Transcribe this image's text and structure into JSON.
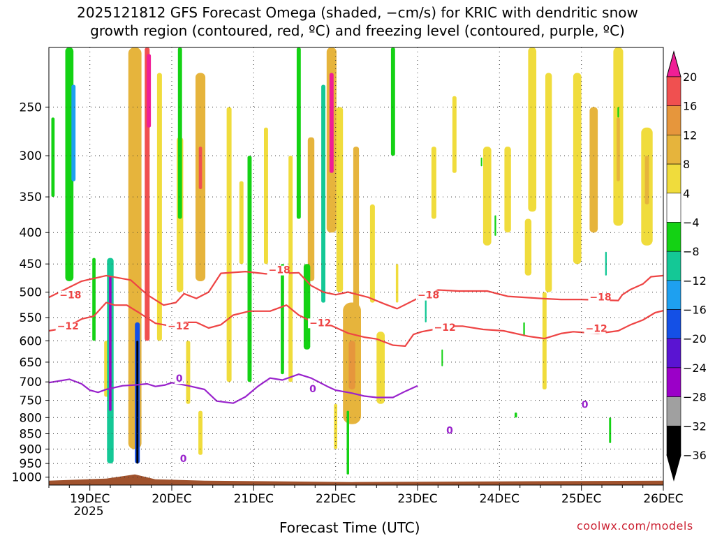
{
  "chart_data": {
    "type": "heatmap",
    "title": "2025121812 GFS Forecast Omega (shaded, −cm/s) for KRIC with dendritic snow",
    "subtitle": "growth region (contoured, red, ºC) and freezing level (contoured, purple, ºC)",
    "xlabel": "Forecast Time (UTC)",
    "watermark": "coolwx.com/models",
    "x_range_days": [
      18.5,
      26.0
    ],
    "x_ticks": [
      {
        "day": 19,
        "label": "19DEC"
      },
      {
        "day": 20,
        "label": "20DEC"
      },
      {
        "day": 21,
        "label": "21DEC"
      },
      {
        "day": 22,
        "label": "22DEC"
      },
      {
        "day": 23,
        "label": "23DEC"
      },
      {
        "day": 24,
        "label": "24DEC"
      },
      {
        "day": 25,
        "label": "25DEC"
      },
      {
        "day": 26,
        "label": "26DEC"
      }
    ],
    "x_year_label": "2025",
    "y_scale": "log",
    "y_range_hpa": [
      1030,
      200
    ],
    "y_ticks": [
      250,
      300,
      350,
      400,
      450,
      500,
      550,
      600,
      650,
      700,
      750,
      800,
      850,
      900,
      950,
      1000
    ],
    "grid": true,
    "colorbar": {
      "levels": [
        -36,
        -32,
        -28,
        -24,
        -20,
        -16,
        -12,
        -8,
        -4,
        4,
        8,
        12,
        16,
        20
      ],
      "labels": [
        "20",
        "16",
        "12",
        "8",
        "4",
        "−4",
        "−8",
        "−12",
        "−16",
        "−20",
        "−24",
        "−28",
        "−32",
        "−36"
      ],
      "colors": {
        "c_lt_-32": "#000000",
        "c_-32_-28": "#a0a0a0",
        "c_-28_-24": "#9b00c8",
        "c_-24_-20": "#5a14d2",
        "c_-20_-16": "#1450e6",
        "c_-16_-12": "#1ea0f0",
        "c_-12_-8": "#14c896",
        "c_-8_-4": "#14d214",
        "c_-4_4": "#ffffff",
        "c_4_8": "#f0dc3c",
        "c_8_12": "#e6b43c",
        "c_12_16": "#e6963c",
        "c_16_20": "#f05050",
        "c_gt_20": "#f01e96"
      }
    },
    "contours": {
      "minus18": {
        "color": "#ee4444",
        "label": "−18",
        "points": [
          [
            18.5,
            510
          ],
          [
            18.9,
            480
          ],
          [
            19.2,
            470
          ],
          [
            19.5,
            478
          ],
          [
            19.7,
            505
          ],
          [
            19.9,
            525
          ],
          [
            20.05,
            520
          ],
          [
            20.15,
            503
          ],
          [
            20.3,
            512
          ],
          [
            20.45,
            500
          ],
          [
            20.6,
            466
          ],
          [
            20.9,
            463
          ],
          [
            21.15,
            467
          ],
          [
            21.35,
            466
          ],
          [
            21.55,
            465
          ],
          [
            21.7,
            488
          ],
          [
            21.85,
            500
          ],
          [
            22.0,
            505
          ],
          [
            22.15,
            500
          ],
          [
            22.4,
            510
          ],
          [
            22.6,
            523
          ],
          [
            22.75,
            532
          ],
          [
            22.9,
            520
          ],
          [
            23.0,
            512
          ],
          [
            23.15,
            504
          ],
          [
            23.25,
            496
          ],
          [
            23.5,
            498
          ],
          [
            23.85,
            498
          ],
          [
            24.1,
            508
          ],
          [
            24.5,
            512
          ],
          [
            24.75,
            514
          ],
          [
            25.0,
            514
          ],
          [
            25.45,
            516
          ],
          [
            25.5,
            505
          ],
          [
            25.6,
            495
          ],
          [
            25.75,
            485
          ],
          [
            25.85,
            472
          ],
          [
            26.0,
            470
          ]
        ]
      },
      "minus12": {
        "color": "#ee4444",
        "label": "−12",
        "points": [
          [
            18.5,
            578
          ],
          [
            18.7,
            572
          ],
          [
            18.9,
            553
          ],
          [
            19.05,
            547
          ],
          [
            19.2,
            520
          ],
          [
            19.3,
            525
          ],
          [
            19.45,
            525
          ],
          [
            19.6,
            540
          ],
          [
            19.8,
            562
          ],
          [
            20.0,
            568
          ],
          [
            20.15,
            560
          ],
          [
            20.3,
            560
          ],
          [
            20.45,
            572
          ],
          [
            20.6,
            565
          ],
          [
            20.75,
            545
          ],
          [
            20.95,
            537
          ],
          [
            21.2,
            537
          ],
          [
            21.4,
            525
          ],
          [
            21.55,
            545
          ],
          [
            21.75,
            562
          ],
          [
            21.95,
            567
          ],
          [
            22.15,
            583
          ],
          [
            22.35,
            592
          ],
          [
            22.5,
            596
          ],
          [
            22.7,
            610
          ],
          [
            22.85,
            612
          ],
          [
            22.95,
            586
          ],
          [
            23.05,
            580
          ],
          [
            23.2,
            575
          ],
          [
            23.35,
            568
          ],
          [
            23.55,
            568
          ],
          [
            23.8,
            575
          ],
          [
            24.05,
            578
          ],
          [
            24.35,
            590
          ],
          [
            24.55,
            595
          ],
          [
            24.75,
            584
          ],
          [
            24.9,
            580
          ],
          [
            25.2,
            584
          ],
          [
            25.45,
            578
          ],
          [
            25.6,
            565
          ],
          [
            25.75,
            555
          ],
          [
            25.9,
            540
          ],
          [
            26.0,
            536
          ]
        ]
      },
      "zero": {
        "color": "#9922cc",
        "label": "0",
        "points": [
          [
            18.5,
            702
          ],
          [
            18.75,
            693
          ],
          [
            18.9,
            705
          ],
          [
            19.0,
            722
          ],
          [
            19.1,
            728
          ],
          [
            19.2,
            720
          ],
          [
            19.4,
            710
          ],
          [
            19.55,
            708
          ],
          [
            19.7,
            705
          ],
          [
            19.8,
            712
          ],
          [
            19.92,
            708
          ],
          [
            20.0,
            702
          ],
          [
            20.2,
            710
          ],
          [
            20.4,
            720
          ],
          [
            20.55,
            752
          ],
          [
            20.75,
            758
          ],
          [
            20.9,
            740
          ],
          [
            21.05,
            712
          ],
          [
            21.2,
            690
          ],
          [
            21.35,
            695
          ],
          [
            21.55,
            680
          ],
          [
            21.7,
            690
          ],
          [
            21.9,
            712
          ],
          [
            22.0,
            722
          ],
          [
            22.2,
            730
          ],
          [
            22.35,
            738
          ],
          [
            22.5,
            742
          ],
          [
            22.7,
            742
          ],
          [
            22.85,
            725
          ],
          [
            23.0,
            710
          ]
        ]
      }
    },
    "contour_labels": [
      {
        "text": "−18",
        "day": 18.63,
        "hpa": 512,
        "color": "#ee4444"
      },
      {
        "text": "−12",
        "day": 18.6,
        "hpa": 575,
        "color": "#ee4444"
      },
      {
        "text": "−12",
        "day": 19.95,
        "hpa": 575,
        "color": "#ee4444"
      },
      {
        "text": "−18",
        "day": 21.18,
        "hpa": 466,
        "color": "#ee4444"
      },
      {
        "text": "−12",
        "day": 21.68,
        "hpa": 568,
        "color": "#ee4444"
      },
      {
        "text": "−18",
        "day": 23.0,
        "hpa": 512,
        "color": "#ee4444"
      },
      {
        "text": "−12",
        "day": 23.2,
        "hpa": 578,
        "color": "#ee4444"
      },
      {
        "text": "−18",
        "day": 25.1,
        "hpa": 516,
        "color": "#ee4444"
      },
      {
        "text": "−12",
        "day": 25.05,
        "hpa": 580,
        "color": "#ee4444"
      },
      {
        "text": "0",
        "day": 20.05,
        "hpa": 700,
        "color": "#9922cc"
      },
      {
        "text": "0",
        "day": 20.1,
        "hpa": 945,
        "color": "#9922cc"
      },
      {
        "text": "0",
        "day": 21.68,
        "hpa": 728,
        "color": "#9922cc"
      },
      {
        "text": "0",
        "day": 23.35,
        "hpa": 850,
        "color": "#9922cc"
      },
      {
        "text": "0",
        "day": 25.0,
        "hpa": 772,
        "color": "#9922cc"
      }
    ],
    "omega_blobs": [
      {
        "day": 19.55,
        "p_top": 200,
        "p_bot": 900,
        "w": 0.16,
        "v": 10
      },
      {
        "day": 19.7,
        "p_top": 200,
        "p_bot": 600,
        "w": 0.06,
        "v": 18
      },
      {
        "day": 19.72,
        "p_top": 205,
        "p_bot": 270,
        "w": 0.05,
        "v": 22
      },
      {
        "day": 19.85,
        "p_top": 220,
        "p_bot": 600,
        "w": 0.06,
        "v": 6
      },
      {
        "day": 20.35,
        "p_top": 220,
        "p_bot": 480,
        "w": 0.12,
        "v": 9
      },
      {
        "day": 20.35,
        "p_top": 290,
        "p_bot": 340,
        "w": 0.04,
        "v": 18
      },
      {
        "day": 20.1,
        "p_top": 280,
        "p_bot": 500,
        "w": 0.08,
        "v": 5
      },
      {
        "day": 20.7,
        "p_top": 250,
        "p_bot": 700,
        "w": 0.06,
        "v": 5
      },
      {
        "day": 20.85,
        "p_top": 330,
        "p_bot": 450,
        "w": 0.05,
        "v": 5
      },
      {
        "day": 21.15,
        "p_top": 270,
        "p_bot": 450,
        "w": 0.05,
        "v": 5
      },
      {
        "day": 21.45,
        "p_top": 300,
        "p_bot": 700,
        "w": 0.05,
        "v": 5
      },
      {
        "day": 21.7,
        "p_top": 280,
        "p_bot": 480,
        "w": 0.08,
        "v": 9
      },
      {
        "day": 21.95,
        "p_top": 200,
        "p_bot": 400,
        "w": 0.12,
        "v": 10
      },
      {
        "day": 21.95,
        "p_top": 220,
        "p_bot": 320,
        "w": 0.05,
        "v": 21
      },
      {
        "day": 22.05,
        "p_top": 250,
        "p_bot": 500,
        "w": 0.08,
        "v": 8
      },
      {
        "day": 22.25,
        "p_top": 290,
        "p_bot": 550,
        "w": 0.07,
        "v": 9
      },
      {
        "day": 22.45,
        "p_top": 360,
        "p_bot": 520,
        "w": 0.06,
        "v": 5
      },
      {
        "day": 22.2,
        "p_top": 520,
        "p_bot": 820,
        "w": 0.22,
        "v": 9
      },
      {
        "day": 22.2,
        "p_top": 600,
        "p_bot": 720,
        "w": 0.08,
        "v": 14
      },
      {
        "day": 22.55,
        "p_top": 580,
        "p_bot": 760,
        "w": 0.1,
        "v": 5
      },
      {
        "day": 22.0,
        "p_top": 760,
        "p_bot": 900,
        "w": 0.04,
        "v": 5
      },
      {
        "day": 22.75,
        "p_top": 450,
        "p_bot": 520,
        "w": 0.03,
        "v": 5
      },
      {
        "day": 23.2,
        "p_top": 290,
        "p_bot": 380,
        "w": 0.06,
        "v": 5
      },
      {
        "day": 23.45,
        "p_top": 240,
        "p_bot": 320,
        "w": 0.05,
        "v": 5
      },
      {
        "day": 23.85,
        "p_top": 290,
        "p_bot": 420,
        "w": 0.1,
        "v": 5
      },
      {
        "day": 24.1,
        "p_top": 290,
        "p_bot": 400,
        "w": 0.08,
        "v": 5
      },
      {
        "day": 24.4,
        "p_top": 200,
        "p_bot": 370,
        "w": 0.1,
        "v": 5
      },
      {
        "day": 24.35,
        "p_top": 380,
        "p_bot": 470,
        "w": 0.08,
        "v": 5
      },
      {
        "day": 24.6,
        "p_top": 220,
        "p_bot": 500,
        "w": 0.08,
        "v": 5
      },
      {
        "day": 24.55,
        "p_top": 500,
        "p_bot": 720,
        "w": 0.05,
        "v": 5
      },
      {
        "day": 24.95,
        "p_top": 220,
        "p_bot": 450,
        "w": 0.1,
        "v": 5
      },
      {
        "day": 25.15,
        "p_top": 250,
        "p_bot": 400,
        "w": 0.1,
        "v": 9
      },
      {
        "day": 25.45,
        "p_top": 200,
        "p_bot": 390,
        "w": 0.12,
        "v": 6
      },
      {
        "day": 25.45,
        "p_top": 260,
        "p_bot": 330,
        "w": 0.04,
        "v": 10
      },
      {
        "day": 25.8,
        "p_top": 270,
        "p_bot": 420,
        "w": 0.14,
        "v": 6
      },
      {
        "day": 25.8,
        "p_top": 300,
        "p_bot": 360,
        "w": 0.05,
        "v": 10
      },
      {
        "day": 19.2,
        "p_top": 600,
        "p_bot": 740,
        "w": 0.05,
        "v": 5
      },
      {
        "day": 20.35,
        "p_top": 780,
        "p_bot": 920,
        "w": 0.05,
        "v": 5
      },
      {
        "day": 20.2,
        "p_top": 600,
        "p_bot": 760,
        "w": 0.05,
        "v": 5
      },
      {
        "day": 18.75,
        "p_top": 200,
        "p_bot": 480,
        "w": 0.1,
        "v": -6
      },
      {
        "day": 18.8,
        "p_top": 230,
        "p_bot": 330,
        "w": 0.05,
        "v": -15
      },
      {
        "day": 18.55,
        "p_top": 260,
        "p_bot": 350,
        "w": 0.04,
        "v": -6
      },
      {
        "day": 19.25,
        "p_top": 440,
        "p_bot": 950,
        "w": 0.08,
        "v": -12
      },
      {
        "day": 19.25,
        "p_top": 470,
        "p_bot": 780,
        "w": 0.03,
        "v": -28
      },
      {
        "day": 19.58,
        "p_top": 560,
        "p_bot": 950,
        "w": 0.06,
        "v": -18
      },
      {
        "day": 19.58,
        "p_top": 600,
        "p_bot": 950,
        "w": 0.025,
        "v": -36
      },
      {
        "day": 19.05,
        "p_top": 440,
        "p_bot": 600,
        "w": 0.04,
        "v": -6
      },
      {
        "day": 20.1,
        "p_top": 200,
        "p_bot": 380,
        "w": 0.05,
        "v": -6
      },
      {
        "day": 20.95,
        "p_top": 300,
        "p_bot": 700,
        "w": 0.05,
        "v": -6
      },
      {
        "day": 21.35,
        "p_top": 450,
        "p_bot": 680,
        "w": 0.04,
        "v": -6
      },
      {
        "day": 21.55,
        "p_top": 200,
        "p_bot": 380,
        "w": 0.05,
        "v": -6
      },
      {
        "day": 21.65,
        "p_top": 450,
        "p_bot": 620,
        "w": 0.08,
        "v": -6
      },
      {
        "day": 21.85,
        "p_top": 230,
        "p_bot": 520,
        "w": 0.05,
        "v": -10
      },
      {
        "day": 22.15,
        "p_top": 780,
        "p_bot": 990,
        "w": 0.03,
        "v": -6
      },
      {
        "day": 22.7,
        "p_top": 200,
        "p_bot": 300,
        "w": 0.05,
        "v": -6
      },
      {
        "day": 23.1,
        "p_top": 500,
        "p_bot": 560,
        "w": 0.02,
        "v": -12
      },
      {
        "day": 23.3,
        "p_top": 620,
        "p_bot": 660,
        "w": 0.015,
        "v": -6
      },
      {
        "day": 23.78,
        "p_top": 302,
        "p_bot": 312,
        "w": 0.015,
        "v": -6
      },
      {
        "day": 23.95,
        "p_top": 375,
        "p_bot": 405,
        "w": 0.02,
        "v": -6
      },
      {
        "day": 24.3,
        "p_top": 560,
        "p_bot": 590,
        "w": 0.02,
        "v": -6
      },
      {
        "day": 24.2,
        "p_top": 785,
        "p_bot": 800,
        "w": 0.03,
        "v": -6
      },
      {
        "day": 25.3,
        "p_top": 430,
        "p_bot": 470,
        "w": 0.02,
        "v": -12
      },
      {
        "day": 25.45,
        "p_top": 250,
        "p_bot": 260,
        "w": 0.02,
        "v": -6
      },
      {
        "day": 25.35,
        "p_top": 800,
        "p_bot": 880,
        "w": 0.025,
        "v": -8
      }
    ]
  }
}
